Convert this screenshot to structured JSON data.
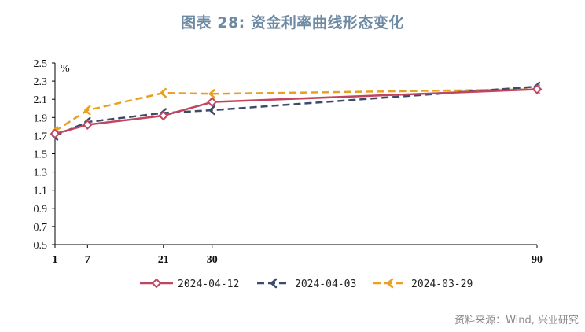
{
  "title": "图表 28: 资金利率曲线形态变化",
  "source": "资料来源：Wind, 兴业研究",
  "chart_data": {
    "type": "line",
    "ylabel": "%",
    "ylim": [
      0.5,
      2.5
    ],
    "yticks": [
      0.5,
      0.7,
      0.9,
      1.1,
      1.3,
      1.5,
      1.7,
      1.9,
      2.1,
      2.3,
      2.5
    ],
    "ytick_labels": [
      "0.5",
      "0.7",
      "0.9",
      "1.1",
      "1.3",
      "1.5",
      "1.7",
      "1.9",
      "2.1",
      "2.3",
      "2.5"
    ],
    "xlim": [
      1,
      90
    ],
    "xticks": [
      1,
      7,
      21,
      30,
      90
    ],
    "xtick_labels": [
      "1",
      "7",
      "21",
      "30",
      "90"
    ],
    "x": [
      1,
      7,
      21,
      30,
      90
    ],
    "grid": false,
    "legend_position": "bottom",
    "series": [
      {
        "name": "2024-04-12",
        "values": [
          1.72,
          1.82,
          1.92,
          2.07,
          2.21
        ],
        "color": "#c0455e",
        "style": "solid",
        "marker": "diamond"
      },
      {
        "name": "2024-04-03",
        "values": [
          1.7,
          1.85,
          1.95,
          1.98,
          2.24
        ],
        "color": "#3e4a6b",
        "style": "dashed",
        "marker": "arrow"
      },
      {
        "name": "2024-03-29",
        "values": [
          1.75,
          1.98,
          2.17,
          2.16,
          2.21
        ],
        "color": "#e8a020",
        "style": "dashed",
        "marker": "arrow"
      }
    ]
  }
}
